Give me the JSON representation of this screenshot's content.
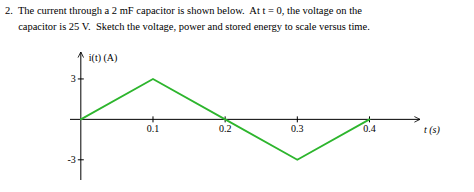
{
  "chart_data": {
    "type": "line",
    "title": "2.  The current through a 2 mF capacitor is shown below.  At t = 0, the voltage on the",
    "subtitle": "     capacitor is 25 V.  Sketch the voltage, power and stored energy to scale versus time.",
    "xlabel": "t (s)",
    "ylabel": "i(t) (A)",
    "x": [
      0.0,
      0.1,
      0.2,
      0.3,
      0.4
    ],
    "values": [
      0,
      3,
      0,
      -3,
      0
    ],
    "color": "#2db52d",
    "xlim": [
      -0.015,
      0.47
    ],
    "ylim": [
      -4.5,
      5.0
    ],
    "xticks": [
      0.1,
      0.2,
      0.3,
      0.4
    ],
    "yticks": [
      3,
      -3
    ]
  }
}
